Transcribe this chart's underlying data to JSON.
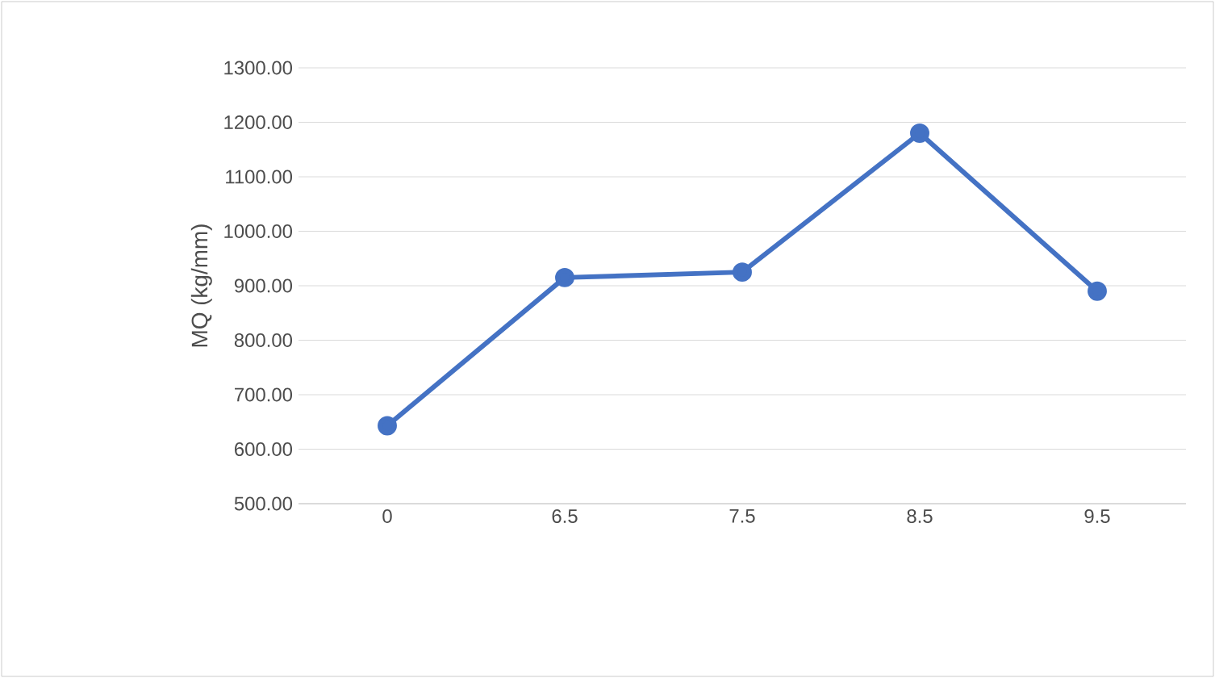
{
  "chart_data": {
    "type": "line",
    "ylabel": "MQ (kg/mm)",
    "categories": [
      "0",
      "6.5",
      "7.5",
      "8.5",
      "9.5"
    ],
    "series": [
      {
        "color": "#4472c4",
        "values": [
          643,
          915,
          925,
          1180,
          890
        ]
      }
    ],
    "ylim": [
      500,
      1300
    ],
    "yticks": [
      {
        "value": 500,
        "label": "500.00"
      },
      {
        "value": 600,
        "label": "600.00"
      },
      {
        "value": 700,
        "label": "700.00"
      },
      {
        "value": 800,
        "label": "800.00"
      },
      {
        "value": 900,
        "label": "900.00"
      },
      {
        "value": 1000,
        "label": "1000.00"
      },
      {
        "value": 1100,
        "label": "1100.00"
      },
      {
        "value": 1200,
        "label": "1200.00"
      },
      {
        "value": 1300,
        "label": "1300.00"
      }
    ],
    "grid": "y",
    "marker": "circle",
    "line_style": "solid"
  }
}
